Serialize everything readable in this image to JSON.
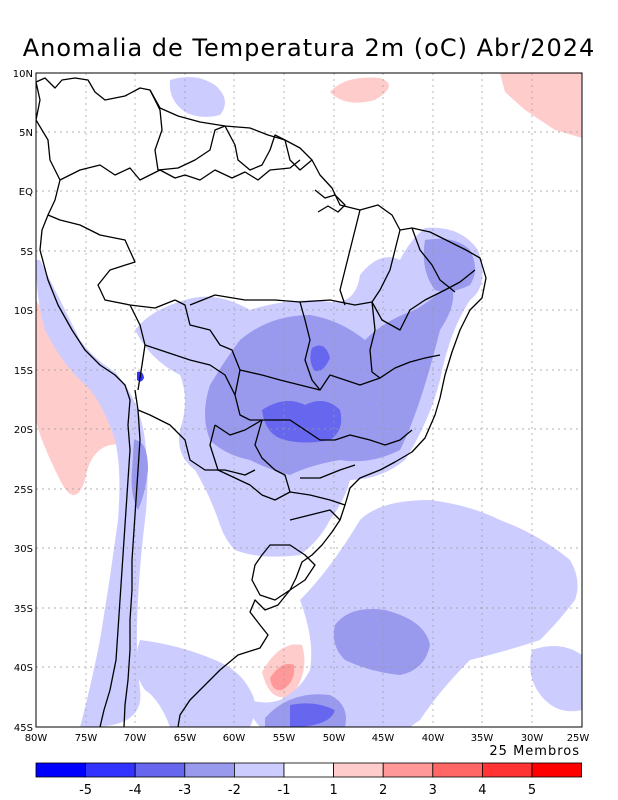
{
  "title": "Anomalia de Temperatura 2m (oC) Abr/2024",
  "members_note": "25 Membros",
  "lat_ticks": [
    "10N",
    "5N",
    "EQ",
    "5S",
    "10S",
    "15S",
    "20S",
    "25S",
    "30S",
    "35S",
    "40S",
    "45S"
  ],
  "lon_ticks": [
    "80W",
    "75W",
    "70W",
    "65W",
    "60W",
    "55W",
    "50W",
    "45W",
    "40W",
    "35W",
    "30W",
    "25W"
  ],
  "colorbar": {
    "tick_labels": [
      "-5",
      "-4",
      "-3",
      "-2",
      "-1",
      "1",
      "2",
      "3",
      "4",
      "5"
    ],
    "colors": [
      "#0000ff",
      "#3333ff",
      "#6666ee",
      "#9999ee",
      "#ccccff",
      "#ffffff",
      "#ffcccc",
      "#ff9999",
      "#ff6666",
      "#ff3333",
      "#ff0000"
    ]
  },
  "colors": {
    "cold_1": "#ccccff",
    "cold_2": "#9999ee",
    "cold_3": "#6666ee",
    "cold_4": "#3333ff",
    "warm_1": "#ffcccc",
    "warm_2": "#ff9999"
  }
}
